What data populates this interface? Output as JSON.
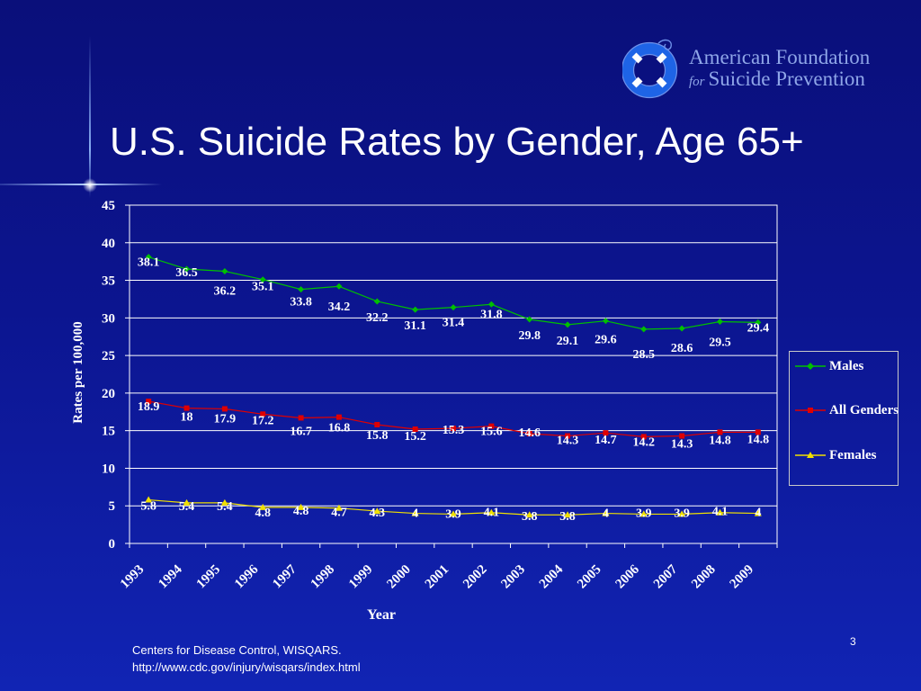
{
  "slide": {
    "title": "U.S. Suicide Rates by Gender, Age 65+",
    "source_line1": "Centers for Disease Control, WISQARS.",
    "source_line2": "http://www.cdc.gov/injury/wisqars/index.html",
    "slide_number": "3"
  },
  "logo": {
    "line1": "American Foundation",
    "for_word": "for",
    "line2": "Suicide Prevention",
    "icon": "life-ring-icon"
  },
  "colors": {
    "background": "#0c1590",
    "males": "#00c000",
    "all_genders": "#e00000",
    "females": "#f0e000",
    "text": "#ffffff"
  },
  "chart_data": {
    "type": "line",
    "title": "",
    "xlabel": "Year",
    "ylabel": "Rates per 100,000",
    "ylim": [
      0,
      45
    ],
    "yticks": [
      0,
      5,
      10,
      15,
      20,
      25,
      30,
      35,
      40,
      45
    ],
    "grid": true,
    "legend_position": "right",
    "categories": [
      "1993",
      "1994",
      "1995",
      "1996",
      "1997",
      "1998",
      "1999",
      "2000",
      "2001",
      "2002",
      "2003",
      "2004",
      "2005",
      "2006",
      "2007",
      "2008",
      "2009"
    ],
    "series": [
      {
        "name": "Males",
        "color": "#00c000",
        "marker": "diamond",
        "values": [
          38.1,
          36.5,
          36.2,
          35.1,
          33.8,
          34.2,
          32.2,
          31.1,
          31.4,
          31.8,
          29.8,
          29.1,
          29.6,
          28.5,
          28.6,
          29.5,
          29.4
        ]
      },
      {
        "name": "All Genders",
        "color": "#e00000",
        "marker": "square",
        "values": [
          18.9,
          18,
          17.9,
          17.2,
          16.7,
          16.8,
          15.8,
          15.2,
          15.3,
          15.6,
          14.6,
          14.3,
          14.7,
          14.2,
          14.3,
          14.8,
          14.8
        ]
      },
      {
        "name": "Females",
        "color": "#f0e000",
        "marker": "triangle",
        "values": [
          5.8,
          5.4,
          5.4,
          4.8,
          4.8,
          4.7,
          4.3,
          4,
          3.9,
          4.1,
          3.8,
          3.8,
          4,
          3.9,
          3.9,
          4.1,
          4
        ]
      }
    ]
  }
}
